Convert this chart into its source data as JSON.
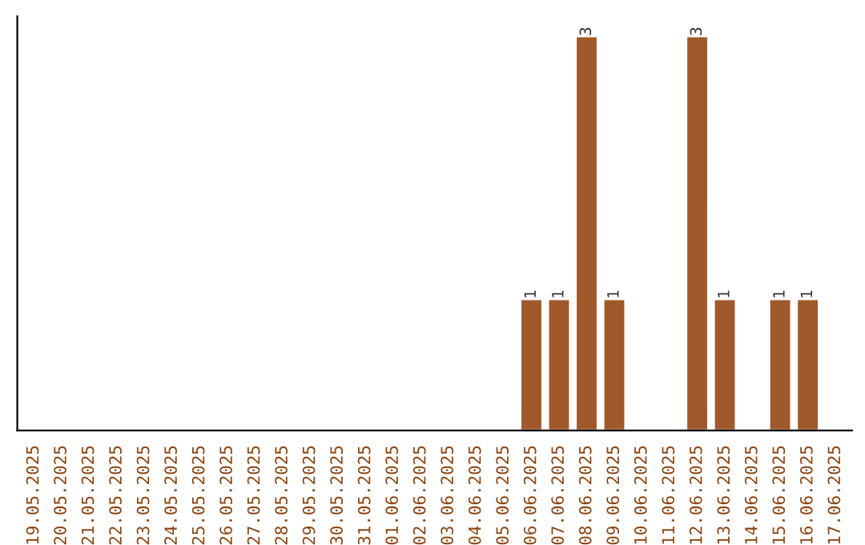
{
  "chart_data": {
    "type": "bar",
    "categories": [
      "19.05.2025",
      "20.05.2025",
      "21.05.2025",
      "22.05.2025",
      "23.05.2025",
      "24.05.2025",
      "25.05.2025",
      "26.05.2025",
      "27.05.2025",
      "28.05.2025",
      "29.05.2025",
      "30.05.2025",
      "31.05.2025",
      "01.06.2025",
      "02.06.2025",
      "03.06.2025",
      "04.06.2025",
      "05.06.2025",
      "06.06.2025",
      "07.06.2025",
      "08.06.2025",
      "09.06.2025",
      "10.06.2025",
      "11.06.2025",
      "12.06.2025",
      "13.06.2025",
      "14.06.2025",
      "15.06.2025",
      "16.06.2025",
      "17.06.2025"
    ],
    "values": [
      null,
      null,
      null,
      null,
      null,
      null,
      null,
      null,
      null,
      null,
      null,
      null,
      null,
      null,
      null,
      null,
      null,
      null,
      1,
      1,
      3,
      1,
      null,
      null,
      3,
      1,
      null,
      1,
      1,
      null
    ],
    "data_labels": true,
    "color": "#a0592a",
    "tick_labels": "x",
    "grid": false,
    "legend": false
  }
}
